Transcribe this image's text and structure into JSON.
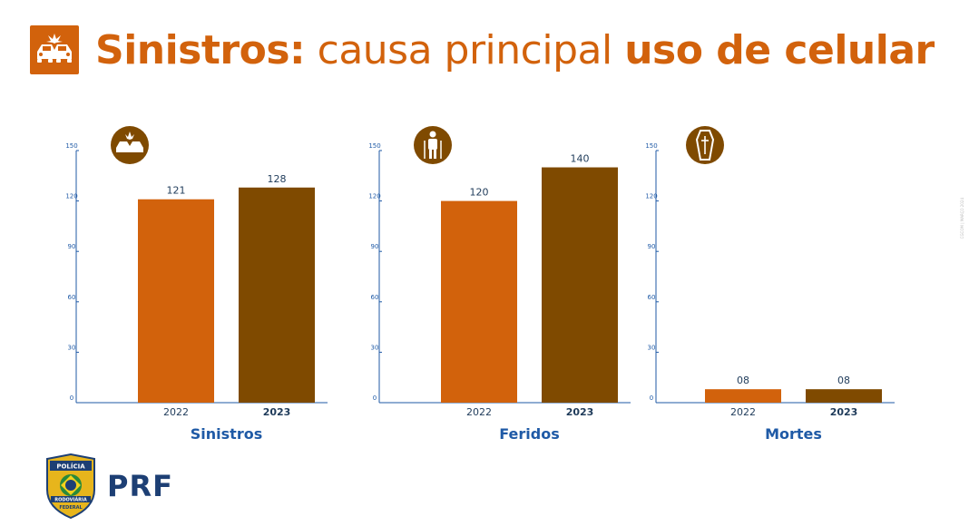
{
  "header": {
    "title_bold_1": "Sinistros:",
    "title_light": "causa principal",
    "title_bold_2": "uso de celular",
    "icon": "car-crash-icon"
  },
  "colors": {
    "accent": "#d2620c",
    "bar_2022": "#d2620c",
    "bar_2023": "#7f4a00",
    "axis": "#1f5aa6",
    "logo_blue": "#1d3f74"
  },
  "chart_data": [
    {
      "type": "bar",
      "icon": "car-crash-icon",
      "xlabel": "Sinistros",
      "categories": [
        "2022",
        "2023"
      ],
      "values": [
        121,
        128
      ],
      "value_labels": [
        "121",
        "128"
      ],
      "ylim": [
        0,
        150
      ],
      "yticks": [
        "0",
        "30",
        "60",
        "90",
        "120",
        "150"
      ]
    },
    {
      "type": "bar",
      "icon": "injured-person-icon",
      "xlabel": "Feridos",
      "categories": [
        "2022",
        "2023"
      ],
      "values": [
        120,
        140
      ],
      "value_labels": [
        "120",
        "140"
      ],
      "ylim": [
        0,
        150
      ],
      "yticks": [
        "0",
        "30",
        "60",
        "90",
        "120",
        "150"
      ]
    },
    {
      "type": "bar",
      "icon": "coffin-icon",
      "xlabel": "Mortes",
      "categories": [
        "2022",
        "2023"
      ],
      "values": [
        8,
        8
      ],
      "value_labels": [
        "08",
        "08"
      ],
      "ylim": [
        0,
        150
      ],
      "yticks": [
        "0",
        "30",
        "60",
        "90",
        "120",
        "150"
      ]
    }
  ],
  "side_note": "CGCOM | MARÇO 2024",
  "footer": {
    "logo_text": "PRF",
    "badge_top": "POLÍCIA",
    "badge_bottom_1": "RODOVIÁRIA",
    "badge_bottom_2": "FEDERAL"
  }
}
